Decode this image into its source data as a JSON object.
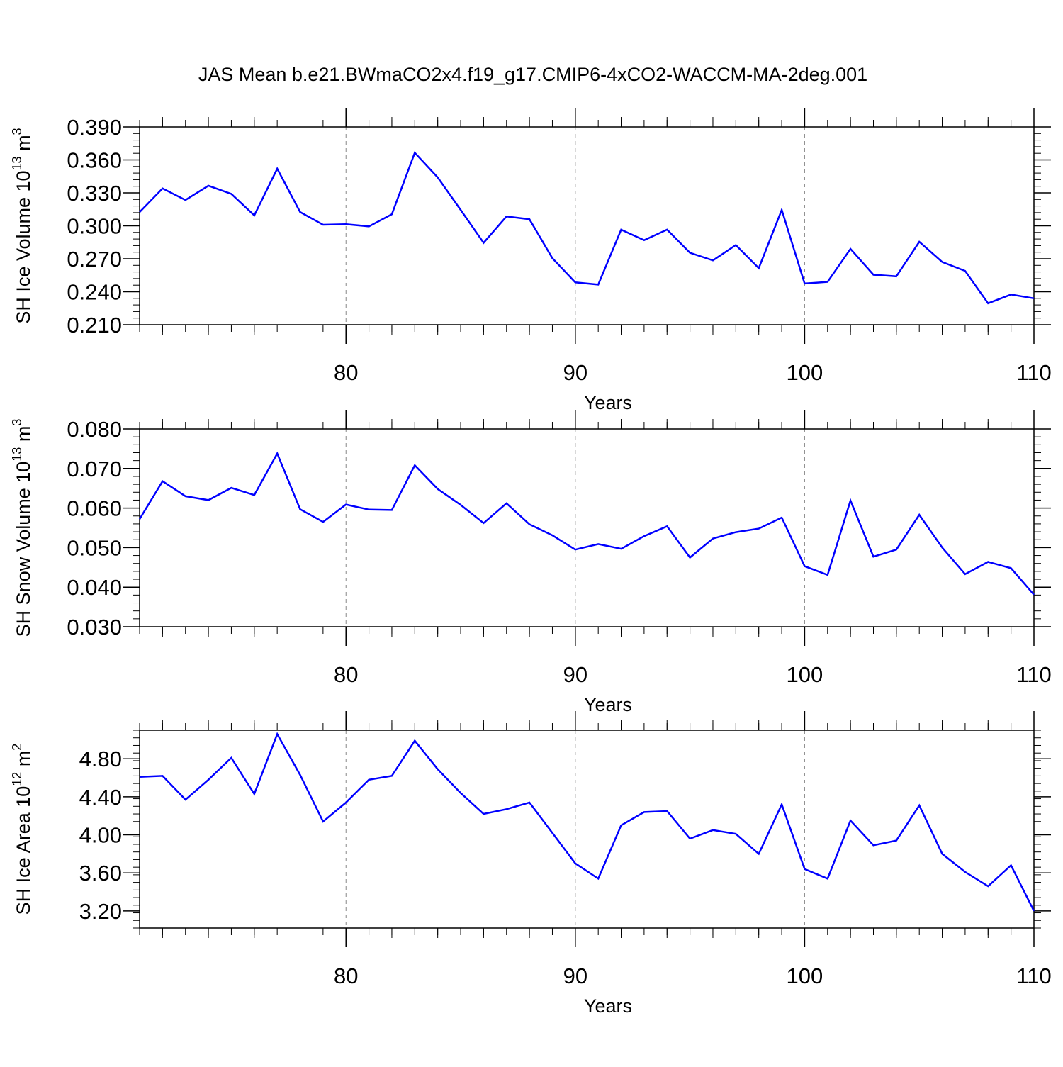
{
  "title": "JAS Mean b.e21.BWmaCO2x4.f19_g17.CMIP6-4xCO2-WACCM-MA-2deg.001",
  "colors": {
    "line": "#0000ff",
    "axis": "#000000",
    "grid": "#888888"
  },
  "chart_data": [
    {
      "type": "line",
      "ylabel": {
        "main": "SH Ice Volume 10",
        "sup": "13",
        "tail": " m",
        "sup2": "3"
      },
      "xlabel": "Years",
      "xlim": [
        71,
        110
      ],
      "ylim": [
        0.21,
        0.39
      ],
      "yticks": [
        "0.210",
        "0.240",
        "0.270",
        "0.300",
        "0.330",
        "0.360",
        "0.390"
      ],
      "ytick_values": [
        0.21,
        0.24,
        0.27,
        0.3,
        0.33,
        0.36,
        0.39
      ],
      "ytick_minor_step": 0.006,
      "xticks": [
        "80",
        "90",
        "100",
        "110"
      ],
      "xtick_values": [
        80,
        90,
        100,
        110
      ],
      "grid_x": [
        80,
        90,
        100
      ],
      "x": [
        71,
        72,
        73,
        74,
        75,
        76,
        77,
        78,
        79,
        80,
        81,
        82,
        83,
        84,
        85,
        86,
        87,
        88,
        89,
        90,
        91,
        92,
        93,
        94,
        95,
        96,
        97,
        98,
        99,
        100,
        101,
        102,
        103,
        104,
        105,
        106,
        107,
        108,
        109,
        110
      ],
      "values": [
        0.3125,
        0.334,
        0.3235,
        0.3365,
        0.329,
        0.3095,
        0.352,
        0.3125,
        0.301,
        0.3015,
        0.2995,
        0.3105,
        0.3665,
        0.344,
        0.3145,
        0.2845,
        0.3085,
        0.306,
        0.2705,
        0.2485,
        0.2465,
        0.2965,
        0.287,
        0.2965,
        0.2755,
        0.2685,
        0.2825,
        0.2615,
        0.3145,
        0.2475,
        0.249,
        0.279,
        0.2555,
        0.254,
        0.2855,
        0.267,
        0.259,
        0.2295,
        0.2375,
        0.234
      ]
    },
    {
      "type": "line",
      "ylabel": {
        "main": "SH Snow Volume 10",
        "sup": "13",
        "tail": " m",
        "sup2": "3"
      },
      "xlabel": "Years",
      "xlim": [
        71,
        110
      ],
      "ylim": [
        0.03,
        0.08
      ],
      "yticks": [
        "0.030",
        "0.040",
        "0.050",
        "0.060",
        "0.070",
        "0.080"
      ],
      "ytick_values": [
        0.03,
        0.04,
        0.05,
        0.06,
        0.07,
        0.08
      ],
      "ytick_minor_step": 0.002,
      "xticks": [
        "80",
        "90",
        "100",
        "110"
      ],
      "xtick_values": [
        80,
        90,
        100,
        110
      ],
      "grid_x": [
        80,
        90,
        100
      ],
      "x": [
        71,
        72,
        73,
        74,
        75,
        76,
        77,
        78,
        79,
        80,
        81,
        82,
        83,
        84,
        85,
        86,
        87,
        88,
        89,
        90,
        91,
        92,
        93,
        94,
        95,
        96,
        97,
        98,
        99,
        100,
        101,
        102,
        103,
        104,
        105,
        106,
        107,
        108,
        109,
        110
      ],
      "values": [
        0.0572,
        0.0668,
        0.063,
        0.062,
        0.0651,
        0.0633,
        0.0738,
        0.0597,
        0.0565,
        0.0609,
        0.0596,
        0.0595,
        0.0708,
        0.0648,
        0.0608,
        0.0562,
        0.0612,
        0.0559,
        0.0531,
        0.0495,
        0.0509,
        0.0497,
        0.0529,
        0.0554,
        0.0475,
        0.0523,
        0.0539,
        0.0548,
        0.0576,
        0.0453,
        0.0431,
        0.0619,
        0.0477,
        0.0495,
        0.0583,
        0.05,
        0.0433,
        0.0464,
        0.0448,
        0.0381
      ]
    },
    {
      "type": "line",
      "ylabel": {
        "main": "SH Ice Area 10",
        "sup": "12",
        "tail": " m",
        "sup2": "2"
      },
      "xlabel": "Years",
      "xlim": [
        71,
        110
      ],
      "ylim": [
        3.02,
        5.1
      ],
      "yticks": [
        "3.20",
        "3.60",
        "4.00",
        "4.40",
        "4.80"
      ],
      "ytick_values": [
        3.2,
        3.6,
        4.0,
        4.4,
        4.8
      ],
      "ytick_minor_step": 0.08,
      "xticks": [
        "80",
        "90",
        "100",
        "110"
      ],
      "xtick_values": [
        80,
        90,
        100,
        110
      ],
      "grid_x": [
        80,
        90,
        100
      ],
      "x": [
        71,
        72,
        73,
        74,
        75,
        76,
        77,
        78,
        79,
        80,
        81,
        82,
        83,
        84,
        85,
        86,
        87,
        88,
        89,
        90,
        91,
        92,
        93,
        94,
        95,
        96,
        97,
        98,
        99,
        100,
        101,
        102,
        103,
        104,
        105,
        106,
        107,
        108,
        109,
        110
      ],
      "values": [
        4.61,
        4.62,
        4.37,
        4.58,
        4.81,
        4.43,
        5.06,
        4.63,
        4.14,
        4.34,
        4.58,
        4.62,
        4.99,
        4.69,
        4.44,
        4.22,
        4.27,
        4.34,
        4.02,
        3.7,
        3.54,
        4.1,
        4.24,
        4.25,
        3.96,
        4.05,
        4.01,
        3.8,
        4.32,
        3.64,
        3.54,
        4.15,
        3.89,
        3.94,
        4.31,
        3.8,
        3.61,
        3.46,
        3.68,
        3.2
      ]
    }
  ]
}
